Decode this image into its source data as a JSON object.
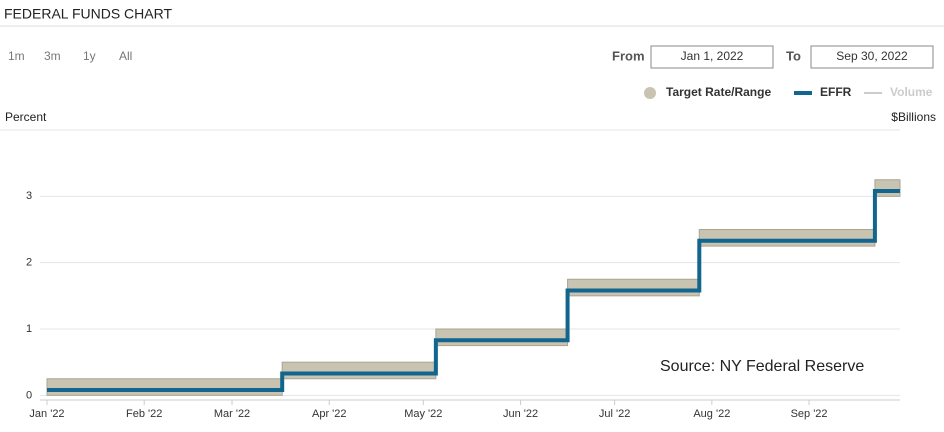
{
  "controls": {
    "ranges": [
      "1m",
      "3m",
      "1y",
      "All"
    ],
    "from_label": "From",
    "from_value": "Jan 1, 2022",
    "to_label": "To",
    "to_value": "Sep 30, 2022"
  },
  "chart_data": {
    "type": "step",
    "title": "FEDERAL FUNDS CHART",
    "y_label": "Percent",
    "y2_label": "$Billions",
    "annotation": "Source: NY Federal Reserve",
    "x": [
      0,
      75,
      75,
      124,
      124,
      166,
      166,
      208,
      208,
      264,
      264,
      272
    ],
    "xlim": [
      0,
      272
    ],
    "xticks": [
      {
        "value": 0,
        "label": "Jan '22"
      },
      {
        "value": 31,
        "label": "Feb '22"
      },
      {
        "value": 59,
        "label": "Mar '22"
      },
      {
        "value": 90,
        "label": "Apr '22"
      },
      {
        "value": 120,
        "label": "May '22"
      },
      {
        "value": 151,
        "label": "Jun '22"
      },
      {
        "value": 181,
        "label": "Jul '22"
      },
      {
        "value": 212,
        "label": "Aug '22"
      },
      {
        "value": 243,
        "label": "Sep '22"
      }
    ],
    "ylim": [
      -0.07,
      4
    ],
    "yticks": [
      0,
      1,
      2,
      3
    ],
    "grid": true,
    "series": [
      {
        "name": "Target Rate/Range",
        "color": "#c9c3b1",
        "low": [
          0,
          0,
          0.25,
          0.25,
          0.75,
          0.75,
          1.5,
          1.5,
          2.25,
          2.25,
          3,
          3
        ],
        "high": [
          0.25,
          0.25,
          0.5,
          0.5,
          1,
          1,
          1.75,
          1.75,
          2.5,
          2.5,
          3.25,
          3.25
        ]
      },
      {
        "name": "EFFR",
        "color": "#11658f",
        "values": [
          0.08,
          0.08,
          0.33,
          0.33,
          0.83,
          0.83,
          1.58,
          1.58,
          2.33,
          2.33,
          3.08,
          3.08
        ]
      },
      {
        "name": "Volume",
        "color": "#cccccc",
        "hidden": true
      }
    ]
  }
}
